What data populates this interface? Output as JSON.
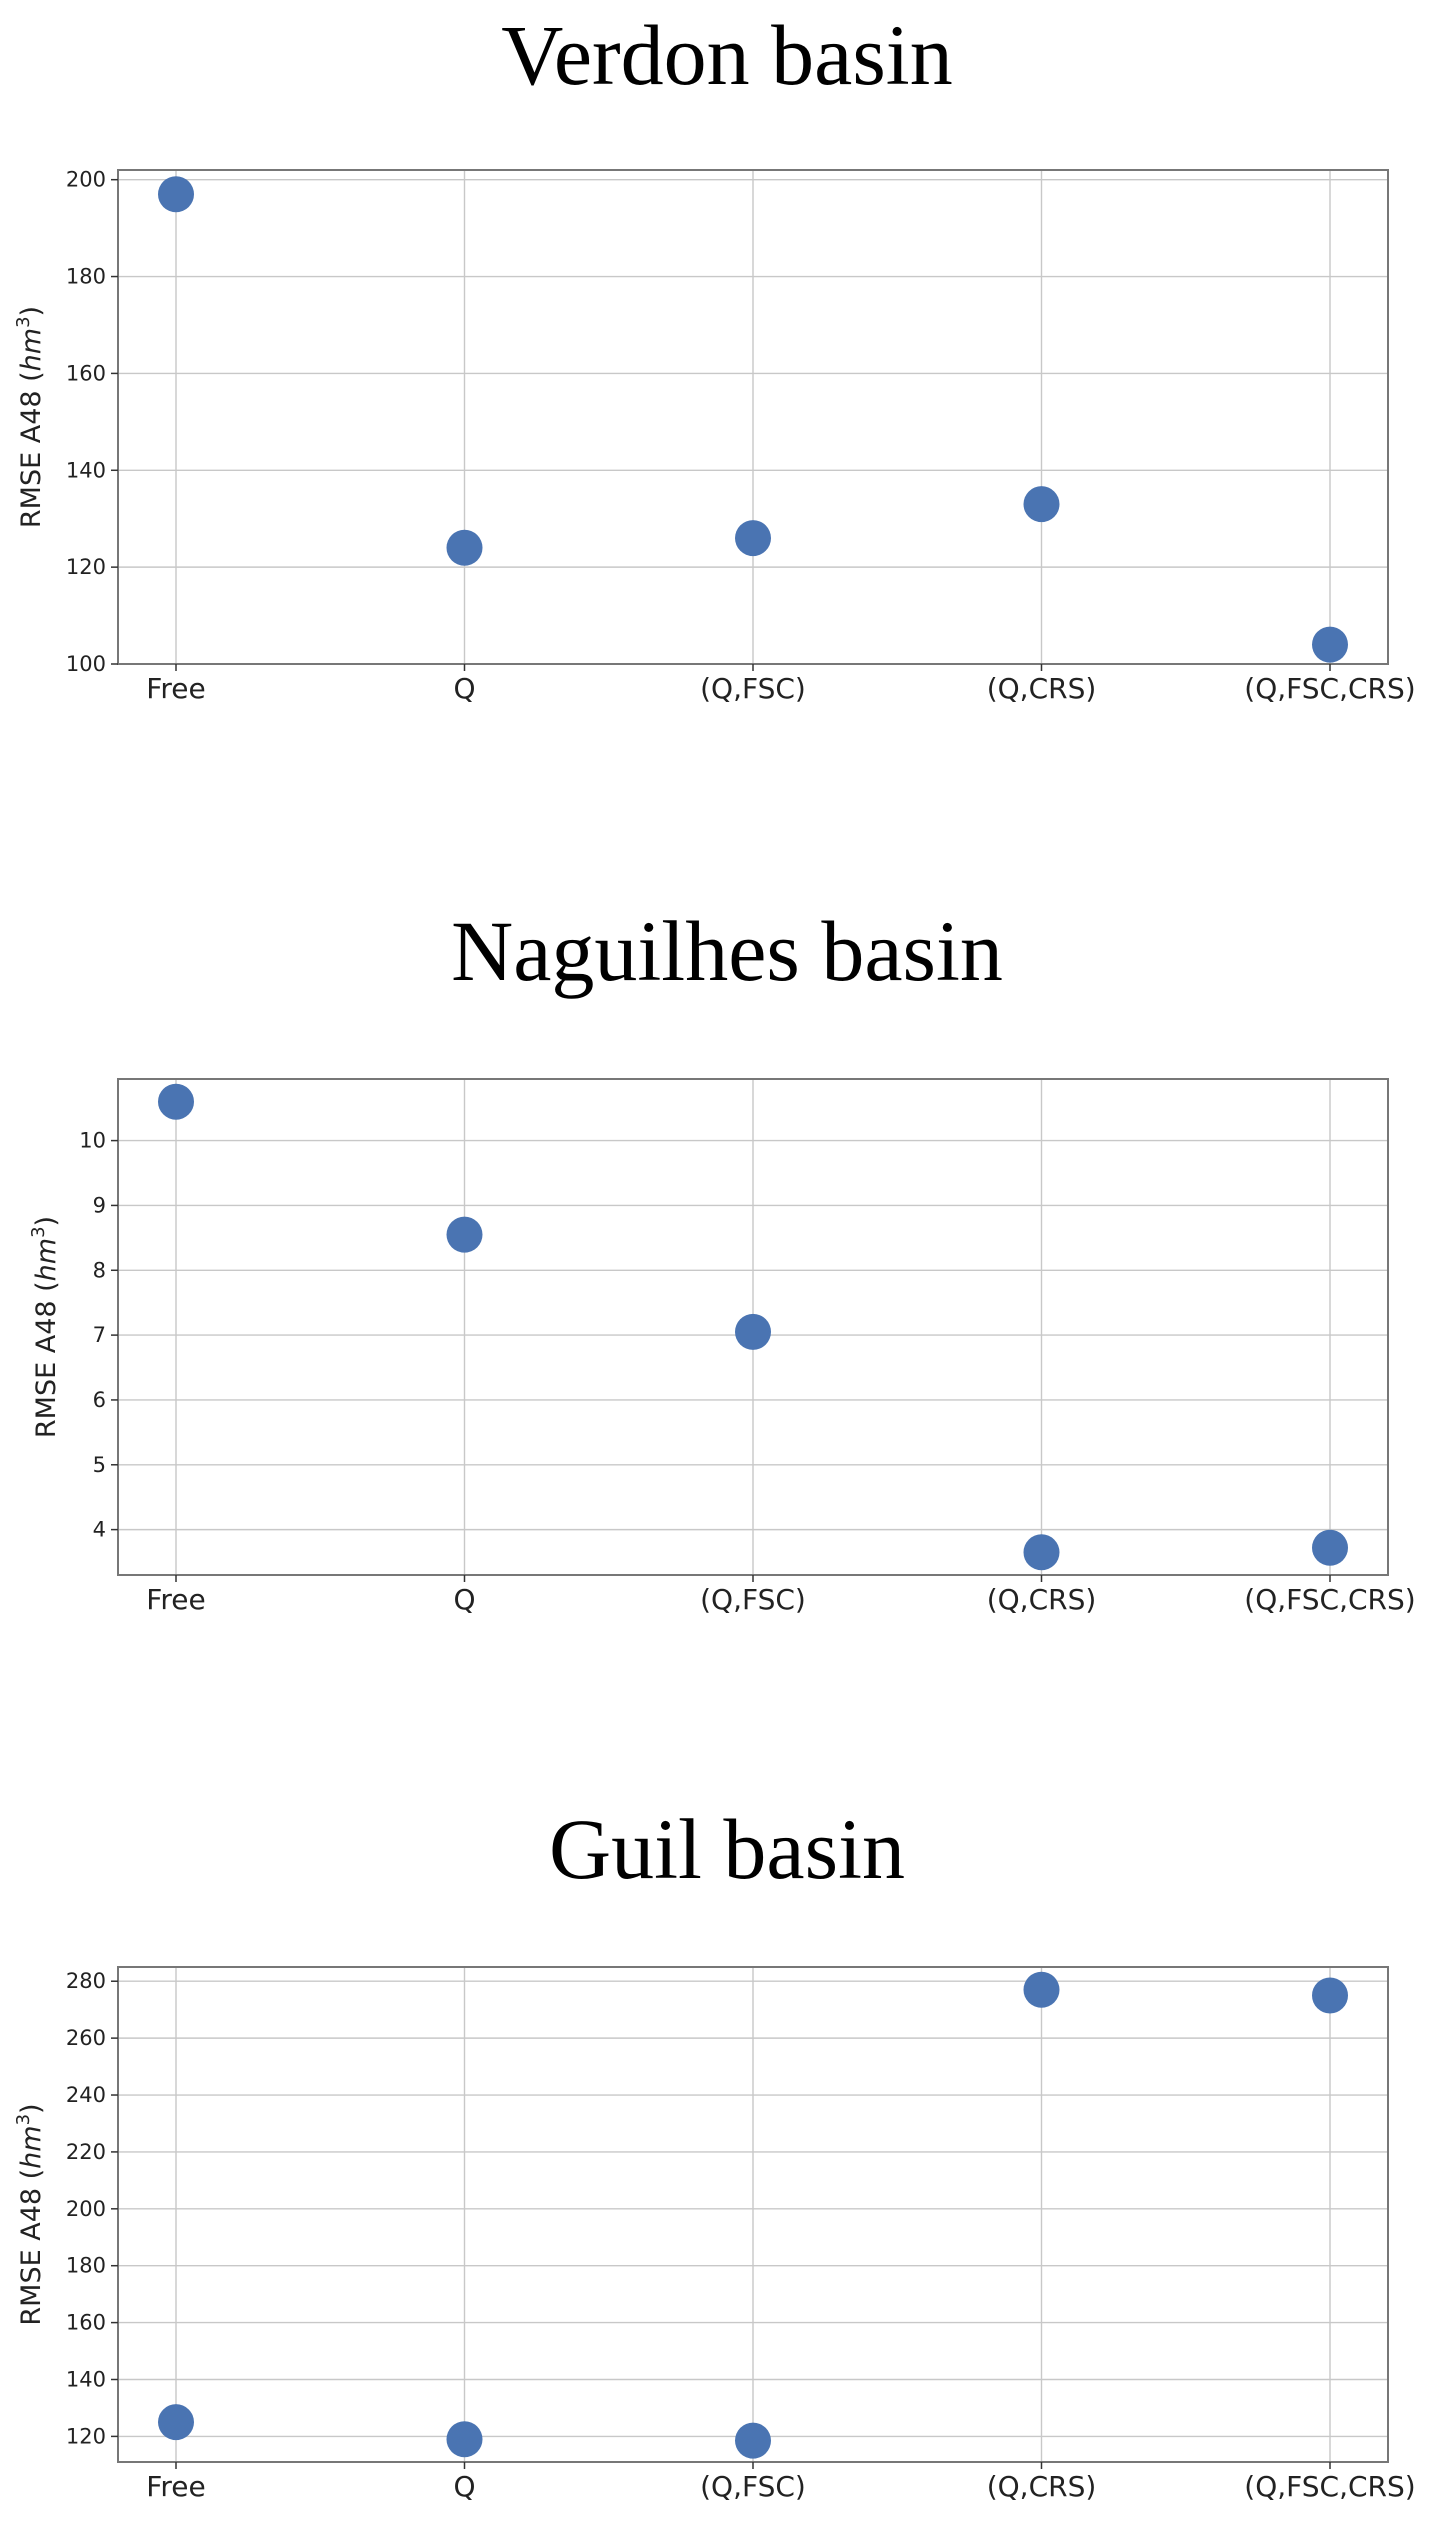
{
  "chart_data": [
    {
      "type": "scatter",
      "title": "Verdon basin",
      "ylabel": "RMSE A48 (hm³)",
      "ylabel_parts": [
        "RMSE A48 (",
        "hm",
        "3",
        ")"
      ],
      "categories": [
        "Free",
        "Q",
        "(Q,FSC)",
        "(Q,CRS)",
        "(Q,FSC,CRS)"
      ],
      "values": [
        197,
        124,
        126,
        133,
        104
      ],
      "ylim": [
        100,
        202
      ],
      "yticks": [
        100,
        120,
        140,
        160,
        180,
        200
      ],
      "grid": true,
      "marker_color": "#4a74b2"
    },
    {
      "type": "scatter",
      "title": "Naguilhes basin",
      "ylabel": "RMSE A48 (hm³)",
      "ylabel_parts": [
        "RMSE A48 (",
        "hm",
        "3",
        ")"
      ],
      "categories": [
        "Free",
        "Q",
        "(Q,FSC)",
        "(Q,CRS)",
        "(Q,FSC,CRS)"
      ],
      "values": [
        10.6,
        8.55,
        7.05,
        3.65,
        3.72
      ],
      "ylim": [
        3.3,
        10.95
      ],
      "yticks": [
        4,
        5,
        6,
        7,
        8,
        9,
        10
      ],
      "grid": true,
      "marker_color": "#4a74b2"
    },
    {
      "type": "scatter",
      "title": "Guil basin",
      "ylabel": "RMSE A48 (hm³)",
      "ylabel_parts": [
        "RMSE A48 (",
        "hm",
        "3",
        ")"
      ],
      "categories": [
        "Free",
        "Q",
        "(Q,FSC)",
        "(Q,CRS)",
        "(Q,FSC,CRS)"
      ],
      "values": [
        125,
        119,
        118.5,
        277,
        275
      ],
      "ylim": [
        111,
        285
      ],
      "yticks": [
        120,
        140,
        160,
        180,
        200,
        220,
        240,
        260,
        280
      ],
      "grid": true,
      "marker_color": "#4a74b2"
    }
  ]
}
